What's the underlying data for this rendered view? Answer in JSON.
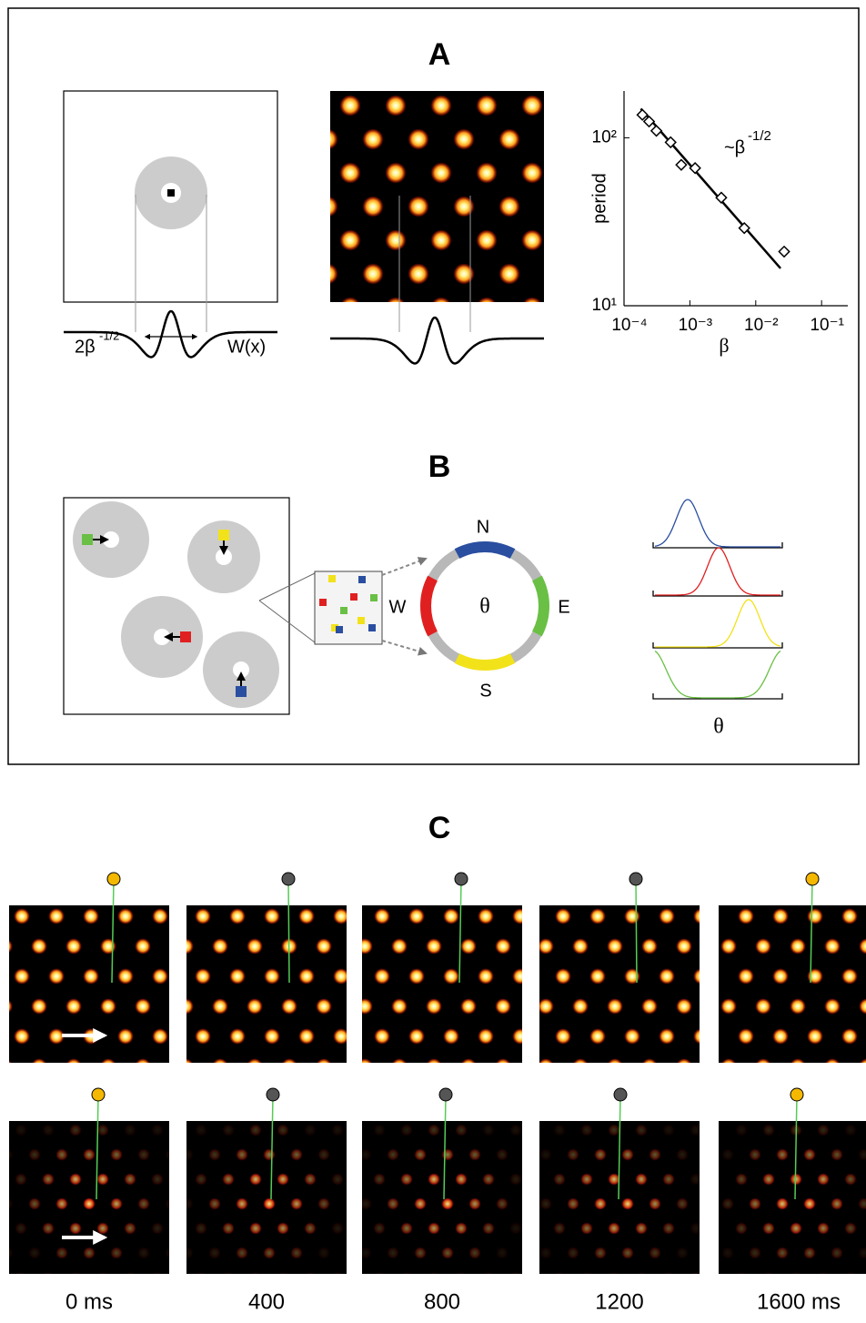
{
  "panels": {
    "a": "A",
    "b": "B",
    "c": "C"
  },
  "panel_a": {
    "width_label": "2β",
    "width_exponent": "-1/2",
    "kernel_label": "W(x)"
  },
  "chart_data": {
    "type": "scatter",
    "xlabel": "β",
    "ylabel": "period",
    "annotation": "~β",
    "annotation_exponent": "-1/2",
    "x": [
      0.00019,
      0.00024,
      0.00031,
      0.00051,
      0.00074,
      0.0012,
      0.003,
      0.0067,
      0.027
    ],
    "values": [
      137,
      125,
      110,
      94,
      69,
      66,
      44,
      29,
      21
    ],
    "fit_x": [
      0.00018,
      0.0238
    ],
    "fit_values": [
      149,
      16.7
    ],
    "xlim": [
      0.0001,
      0.25
    ],
    "ylim": [
      10,
      190
    ],
    "log_x": true,
    "log_y": true,
    "xticks": [
      {
        "value": 0.0001,
        "label": "10⁻⁴"
      },
      {
        "value": 0.001,
        "label": "10⁻³"
      },
      {
        "value": 0.01,
        "label": "10⁻²"
      },
      {
        "value": 0.1,
        "label": "10⁻¹"
      }
    ],
    "yticks": [
      {
        "value": 10,
        "label": "10¹"
      },
      {
        "value": 100,
        "label": "10²"
      }
    ],
    "color": "#000000"
  },
  "panel_b": {
    "directions": {
      "n": "N",
      "e": "E",
      "s": "S",
      "w": "W"
    },
    "ring_label": "θ",
    "axis_label": "θ"
  },
  "panel_c": {
    "times": [
      "0 ms",
      "400",
      "800",
      "1200",
      "1600 ms"
    ]
  }
}
